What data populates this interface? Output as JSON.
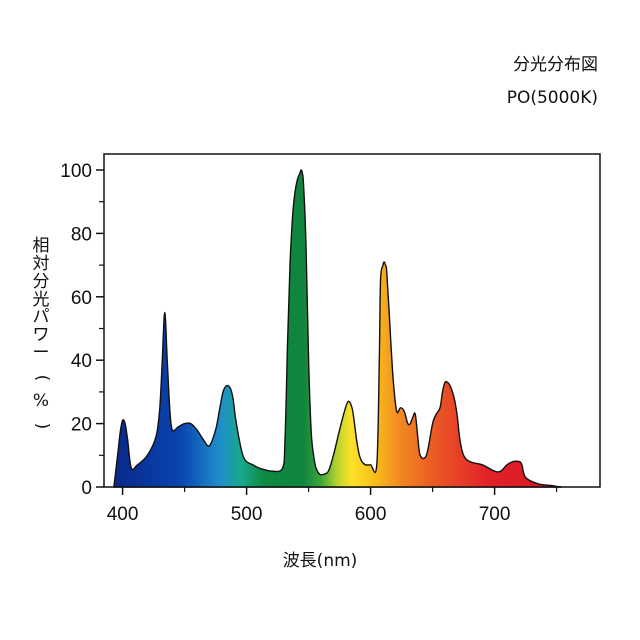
{
  "chart_data": {
    "type": "area",
    "title": "分光分布図",
    "subtitle": "PO(5000K)",
    "ylabel": "相対分光パワー(%)",
    "xlabel": "波長(nm)",
    "xlim": [
      385,
      785
    ],
    "ylim": [
      0,
      100
    ],
    "xticks": [
      400,
      500,
      600,
      700
    ],
    "yticks": [
      0,
      20,
      40,
      60,
      80,
      100
    ],
    "grid": false,
    "legend": "none",
    "series": [
      {
        "x": [
          393,
          396,
          398,
          400,
          402,
          404,
          407,
          412,
          420,
          427,
          430,
          432,
          434,
          436,
          438,
          440,
          445,
          450,
          455,
          460,
          465,
          470,
          475,
          478,
          481,
          484,
          487,
          489,
          491,
          494,
          497,
          500,
          505,
          510,
          520,
          529,
          531,
          533,
          535,
          537,
          539,
          541,
          543,
          544,
          545,
          546,
          548,
          550,
          552,
          554,
          556,
          559,
          562,
          566,
          570,
          575,
          579,
          582,
          585,
          587,
          589,
          591,
          593,
          596,
          600,
          605,
          607,
          608,
          610,
          611,
          612,
          613,
          615,
          618,
          621,
          624,
          627,
          630,
          632,
          634,
          636,
          638,
          640,
          645,
          650,
          653,
          656,
          658,
          660,
          662,
          664,
          666,
          668,
          670,
          672,
          675,
          680,
          690,
          700,
          705,
          710,
          715,
          720,
          722,
          725,
          735,
          745,
          750,
          754
        ],
        "y": [
          0,
          10,
          17,
          21,
          20,
          15,
          6,
          7,
          10,
          16,
          25,
          40,
          55,
          40,
          25,
          18,
          19,
          20,
          20,
          18,
          15,
          13,
          18,
          24,
          30,
          32,
          31,
          28,
          22,
          15,
          10,
          8,
          7,
          6,
          5,
          6,
          15,
          45,
          70,
          85,
          93,
          97,
          99,
          100,
          99,
          95,
          75,
          40,
          18,
          10,
          6,
          4,
          4,
          5,
          10,
          18,
          24,
          27,
          25,
          20,
          14,
          10,
          8,
          7,
          7,
          7,
          40,
          65,
          70,
          71,
          70,
          68,
          55,
          35,
          24,
          25,
          24,
          20,
          20,
          22,
          23,
          16,
          10,
          10,
          20,
          23,
          25,
          30,
          33,
          33,
          32,
          30,
          27,
          22,
          15,
          10,
          8,
          7,
          5,
          5,
          7,
          8,
          8,
          7,
          3,
          1,
          0.5,
          0.2,
          0
        ]
      }
    ]
  }
}
